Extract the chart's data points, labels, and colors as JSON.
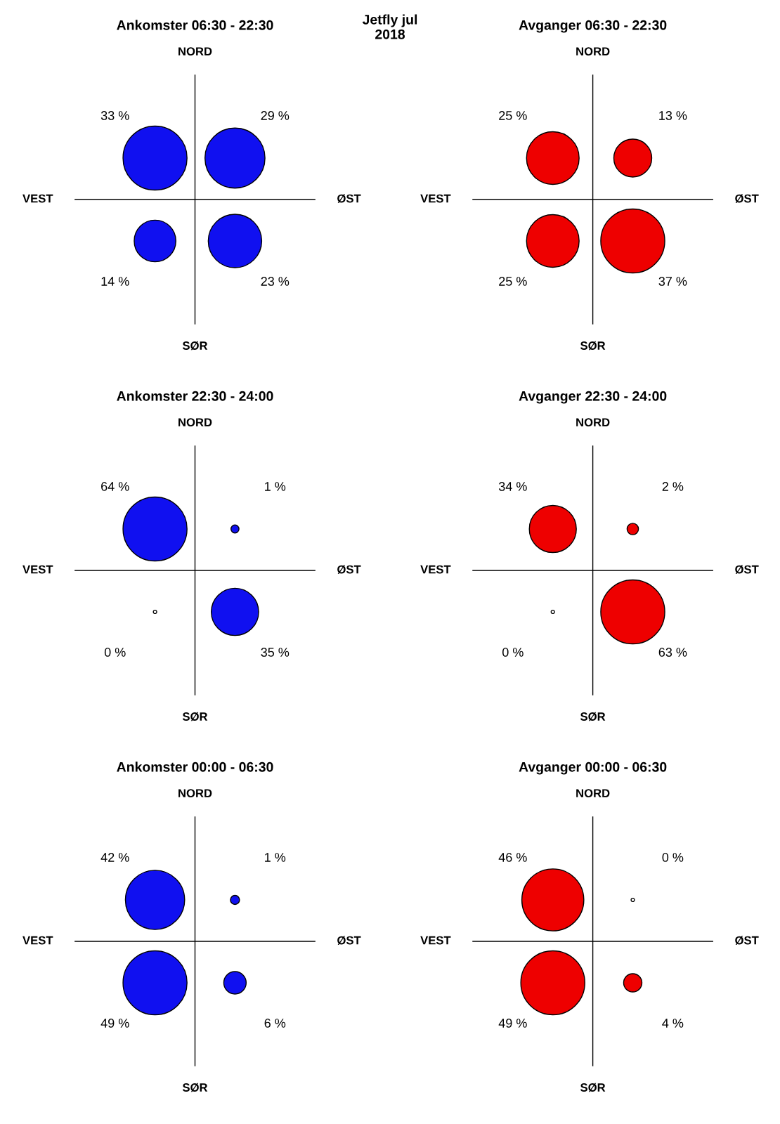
{
  "chart_data": [
    {
      "type": "other",
      "title": "Jetfly jul\n2018"
    },
    {
      "type": "other",
      "title": "Ankomster 06:30 - 22:30",
      "categories": [
        null,
        null,
        null,
        null
      ],
      "color": "#1010f0",
      "annotations": [
        "NORD",
        "ØST",
        "SØR",
        "VEST"
      ],
      "values": [
        33,
        29,
        14,
        23
      ],
      "value_labels": [
        "33 %",
        "29 %",
        "14 %",
        "23 %"
      ]
    },
    {
      "type": "other",
      "title": "Avganger 06:30 - 22:30",
      "categories": [
        null,
        null,
        null,
        null
      ],
      "color": "#ee0000",
      "annotations": [
        "NORD",
        "ØST",
        "SØR",
        "VEST"
      ],
      "values": [
        25,
        13,
        25,
        37
      ],
      "value_labels": [
        "25 %",
        "13 %",
        "25 %",
        "37 %"
      ]
    },
    {
      "type": "other",
      "title": "Ankomster 22:30 - 24:00",
      "categories": [
        null,
        null,
        null,
        null
      ],
      "color": "#1010f0",
      "annotations": [
        "NORD",
        "ØST",
        "SØR",
        "VEST"
      ],
      "values": [
        64,
        1,
        0,
        35
      ],
      "value_labels": [
        "64 %",
        "1 %",
        "0 %",
        "35 %"
      ]
    },
    {
      "type": "other",
      "title": "Avganger 22:30 - 24:00",
      "categories": [
        null,
        null,
        null,
        null
      ],
      "color": "#ee0000",
      "annotations": [
        "NORD",
        "ØST",
        "SØR",
        "VEST"
      ],
      "values": [
        34,
        2,
        0,
        63
      ],
      "value_labels": [
        "34 %",
        "2 %",
        "0 %",
        "63 %"
      ]
    },
    {
      "type": "other",
      "title": "Ankomster 00:00 - 06:30",
      "categories": [
        null,
        null,
        null,
        null
      ],
      "color": "#1010f0",
      "annotations": [
        "NORD",
        "ØST",
        "SØR",
        "VEST"
      ],
      "values": [
        42,
        1,
        49,
        6
      ],
      "value_labels": [
        "42 %",
        "1 %",
        "49 %",
        "6 %"
      ]
    },
    {
      "type": "other",
      "title": "Avganger 00:00 - 06:30",
      "categories": [
        null,
        null,
        null,
        null
      ],
      "color": "#ee0000",
      "annotations": [
        "NORD",
        "ØST",
        "SØR",
        "VEST"
      ],
      "values": [
        46,
        0,
        49,
        4
      ],
      "value_labels": [
        "46 %",
        "0 %",
        "49 %",
        "4 %"
      ]
    }
  ]
}
